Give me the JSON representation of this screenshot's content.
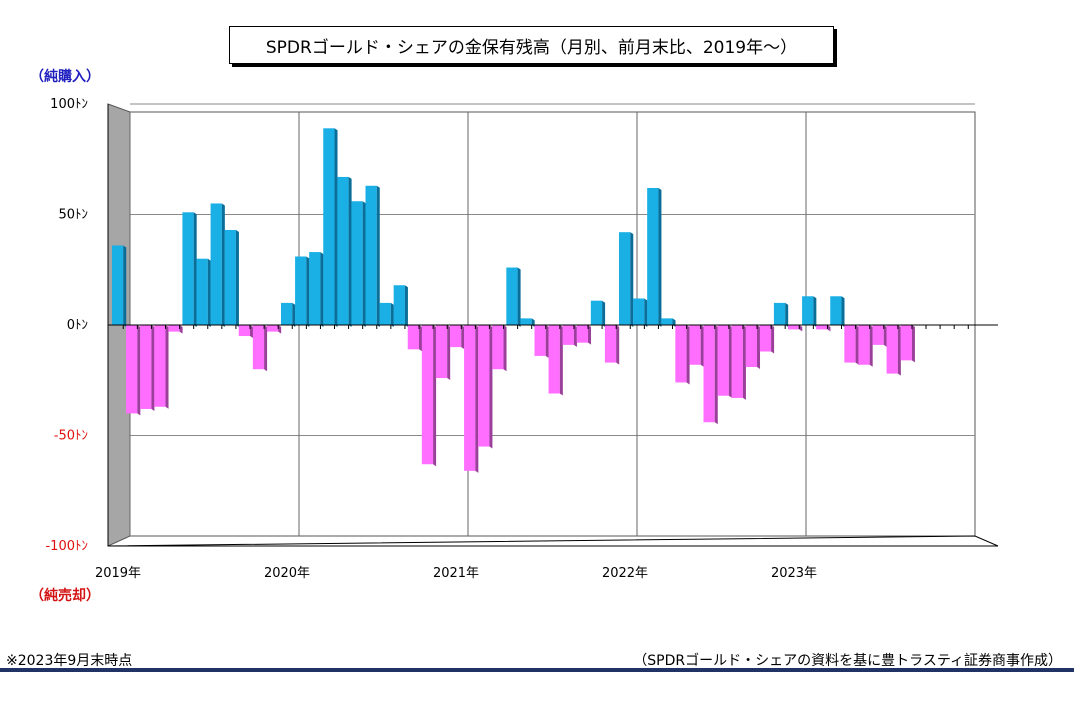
{
  "title": "SPDRゴールド・シェアの金保有残高（月別、前月末比、2019年～）",
  "label_buy": "（純購入）",
  "label_sell": "（純売却）",
  "note_left": "※2023年9月末時点",
  "note_right": "（SPDRゴールド・シェアの資料を基に豊トラスティ証券商事作成）",
  "colors": {
    "positive": "#1ab0e6",
    "positive_dark": "#0a6e98",
    "negative": "#ff6eff",
    "negative_dark": "#9a3f9a",
    "axis_negative_label": "#e01010"
  },
  "chart_data": {
    "type": "bar",
    "ylim": [
      -100,
      100
    ],
    "y_ticks": [
      {
        "value": 100,
        "label": "100ﾄﾝ"
      },
      {
        "value": 50,
        "label": "50ﾄﾝ"
      },
      {
        "value": 0,
        "label": "0ﾄﾝ"
      },
      {
        "value": -50,
        "label": "-50ﾄﾝ"
      },
      {
        "value": -100,
        "label": "-100ﾄﾝ"
      }
    ],
    "x_ticks": [
      "2019年",
      "2020年",
      "2021年",
      "2022年",
      "2023年"
    ],
    "grid": true,
    "series": [
      {
        "values": [
          36,
          -40,
          -38,
          -37,
          -3,
          51,
          30,
          55,
          43,
          -5,
          -20,
          -3,
          10,
          31,
          33,
          89,
          67,
          56,
          63,
          10,
          18,
          -11,
          -63,
          -24,
          -10,
          -66,
          -55,
          -20,
          26,
          3,
          -14,
          -31,
          -9,
          -8,
          11,
          -17,
          42,
          12,
          62,
          3,
          -26,
          -18,
          -44,
          -32,
          -33,
          -19,
          -12,
          10,
          -2,
          13,
          -2,
          13,
          -17,
          -18,
          -9,
          -22,
          -16
        ]
      }
    ]
  }
}
